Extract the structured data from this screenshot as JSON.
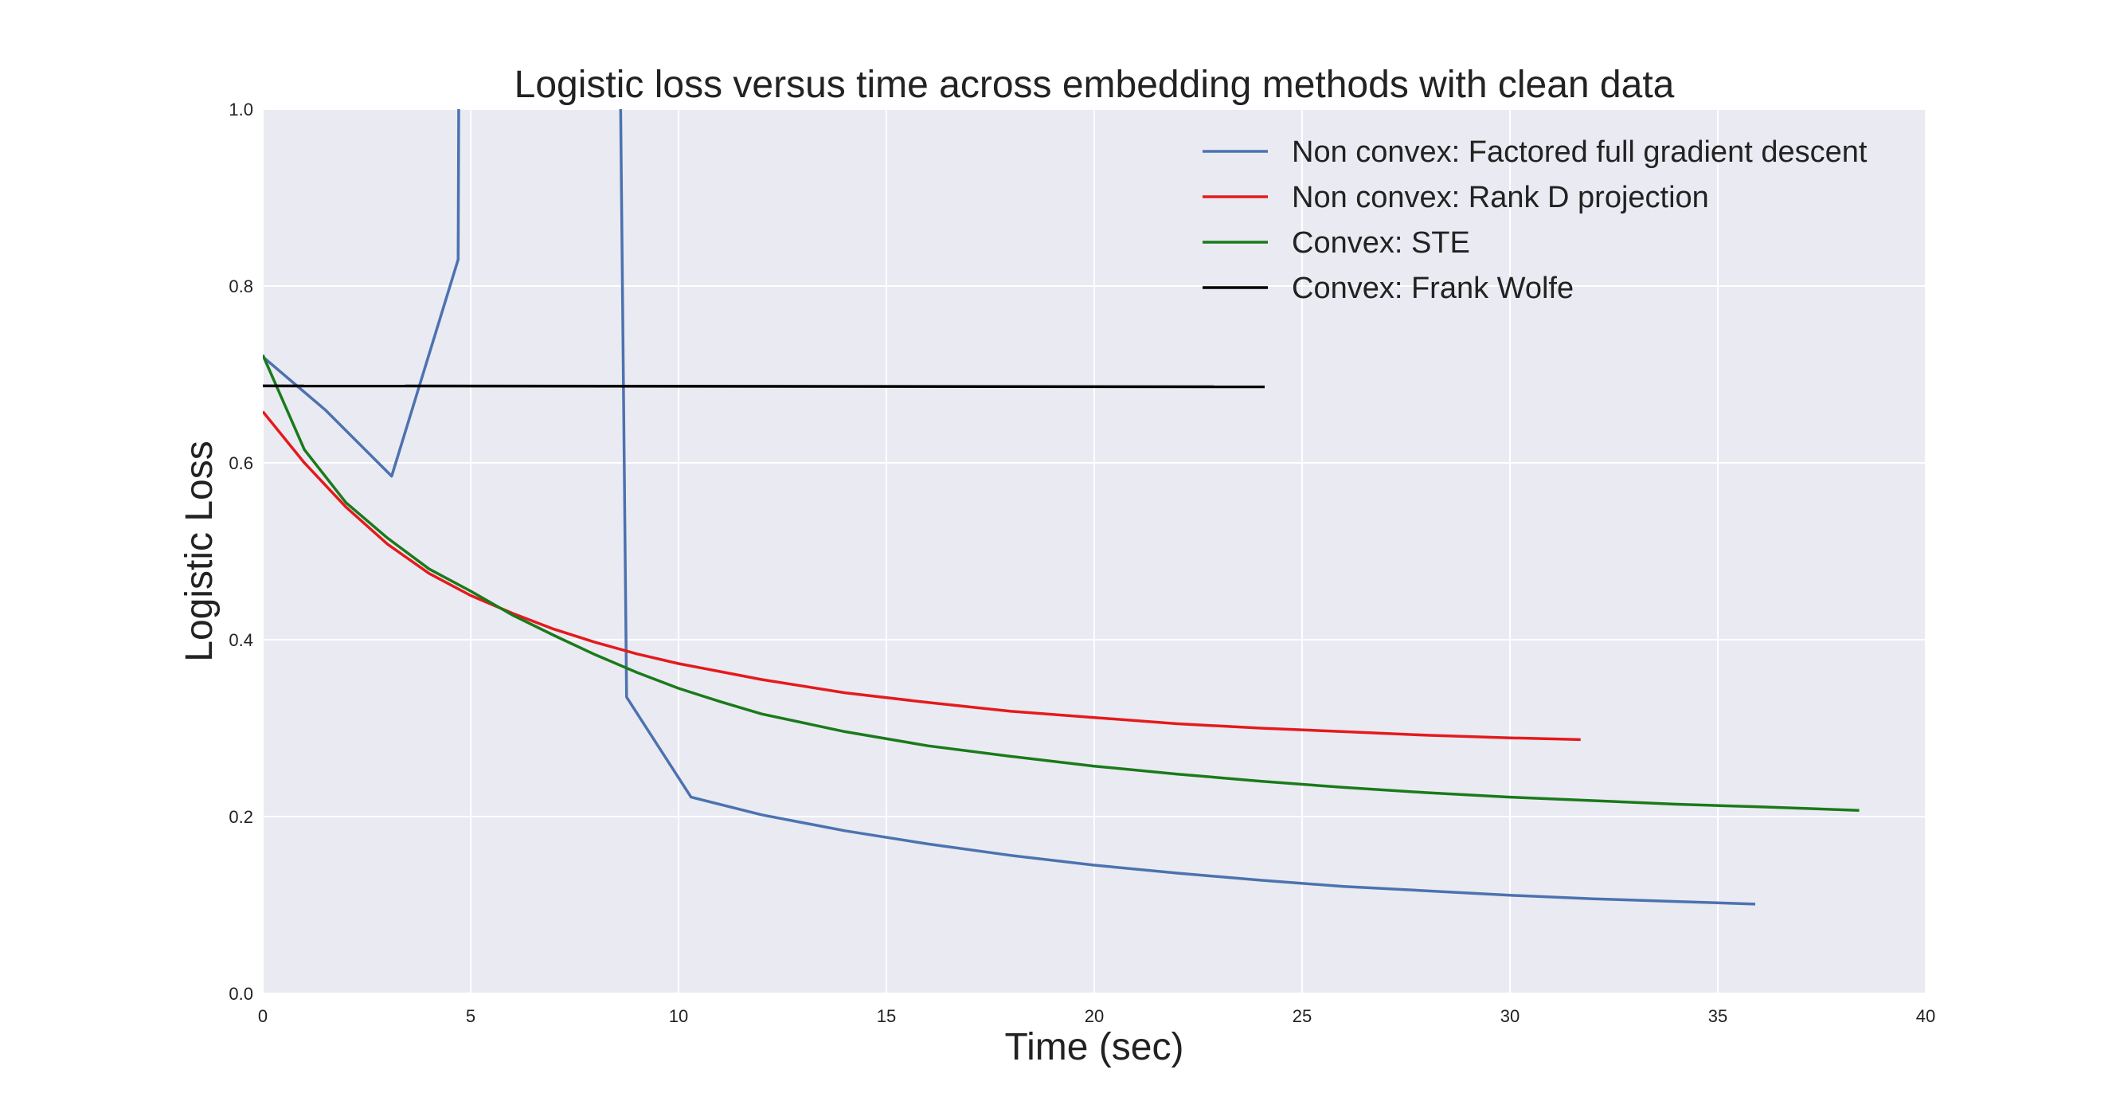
{
  "chart_data": {
    "type": "line",
    "title": "Logistic loss versus time across embedding methods with clean data",
    "xlabel": "Time (sec)",
    "ylabel": "Logistic Loss",
    "xlim": [
      0,
      40
    ],
    "ylim": [
      0,
      1.0
    ],
    "xticks": [
      "0",
      "5",
      "10",
      "15",
      "20",
      "25",
      "30",
      "35",
      "40"
    ],
    "yticks": [
      "0.0",
      "0.2",
      "0.4",
      "0.6",
      "0.8",
      "1.0"
    ],
    "grid": true,
    "legend_position": "top-right",
    "series": [
      {
        "name": "Non convex: Factored full gradient descent",
        "color": "#4c72b0",
        "x": [
          0,
          1.5,
          3.1,
          4.7,
          4.75,
          8.5,
          8.75,
          10.3,
          12,
          14,
          16,
          18,
          20,
          22,
          24,
          26,
          28,
          30,
          32,
          34,
          35.9
        ],
        "y": [
          0.72,
          0.66,
          0.585,
          0.83,
          1.5,
          1.5,
          0.335,
          0.222,
          0.202,
          0.184,
          0.169,
          0.156,
          0.145,
          0.136,
          0.128,
          0.121,
          0.116,
          0.111,
          0.107,
          0.104,
          0.101
        ]
      },
      {
        "name": "Non convex: Rank D projection",
        "color": "#e41a1c",
        "x": [
          0,
          1,
          2,
          3,
          4,
          5,
          6,
          7,
          8,
          9,
          10,
          12,
          14,
          16,
          18,
          20,
          22,
          24,
          26,
          28,
          30,
          31.7
        ],
        "y": [
          0.658,
          0.6,
          0.55,
          0.508,
          0.475,
          0.45,
          0.43,
          0.412,
          0.397,
          0.384,
          0.373,
          0.355,
          0.34,
          0.329,
          0.319,
          0.312,
          0.305,
          0.3,
          0.296,
          0.292,
          0.289,
          0.287
        ]
      },
      {
        "name": "Convex: STE",
        "color": "#1a7a1a",
        "x": [
          0,
          1,
          2,
          3,
          4,
          5,
          6,
          7,
          8,
          9,
          10,
          11,
          12,
          14,
          16,
          18,
          20,
          22,
          24,
          26,
          28,
          30,
          32,
          34,
          36,
          38.4
        ],
        "y": [
          0.722,
          0.615,
          0.555,
          0.515,
          0.48,
          0.455,
          0.428,
          0.405,
          0.383,
          0.363,
          0.345,
          0.33,
          0.316,
          0.296,
          0.28,
          0.268,
          0.257,
          0.248,
          0.24,
          0.233,
          0.227,
          0.222,
          0.218,
          0.214,
          0.211,
          0.207
        ]
      },
      {
        "name": "Convex: Frank Wolfe",
        "color": "#000000",
        "x": [
          0,
          24.1
        ],
        "y": [
          0.687,
          0.686
        ]
      }
    ]
  }
}
